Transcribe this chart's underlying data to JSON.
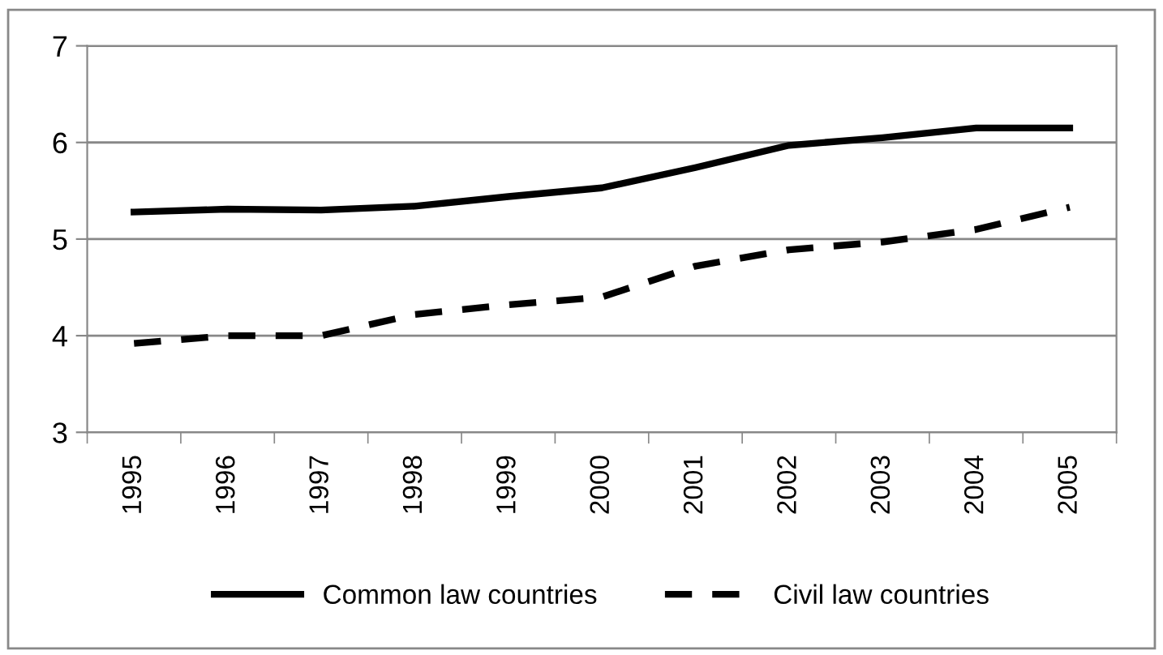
{
  "chart_data": {
    "type": "line",
    "categories": [
      "1995",
      "1996",
      "1997",
      "1998",
      "1999",
      "2000",
      "2001",
      "2002",
      "2003",
      "2004",
      "2005"
    ],
    "series": [
      {
        "name": "Common law countries",
        "color": "#000000",
        "line_style": "solid",
        "values": [
          5.28,
          5.31,
          5.3,
          5.34,
          5.44,
          5.53,
          5.74,
          5.97,
          6.05,
          6.15,
          6.15
        ]
      },
      {
        "name": "Civil law countries",
        "color": "#000000",
        "line_style": "dashed",
        "values": [
          3.92,
          4.0,
          4.0,
          4.22,
          4.32,
          4.4,
          4.72,
          4.89,
          4.97,
          5.1,
          5.33
        ]
      }
    ],
    "ylim": [
      3,
      7
    ],
    "yticks": [
      3,
      4,
      5,
      6,
      7
    ],
    "grid": "y",
    "legend": "bottom",
    "marker": "none"
  }
}
